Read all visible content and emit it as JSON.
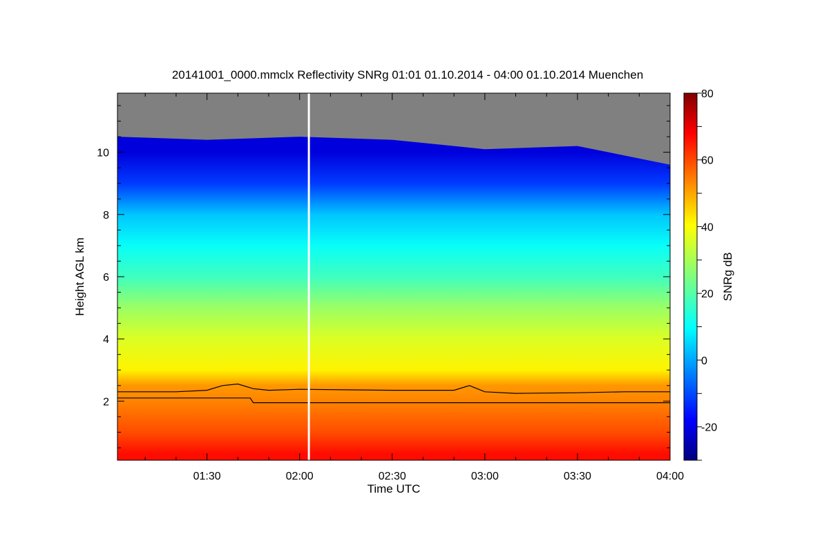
{
  "chart_data": {
    "type": "heatmap",
    "title": "20141001_0000.mmclx Reflectivity SNRg   01:01 01.10.2014 - 04:00 01.10.2014 Muenchen",
    "xlabel": "Time UTC",
    "ylabel": "Height AGL km",
    "colorbar_label": "SNRg dB",
    "x_range": [
      "01:01",
      "04:00"
    ],
    "y_range": [
      0.1,
      11.9
    ],
    "x_ticks": [
      "01:30",
      "02:00",
      "02:30",
      "03:00",
      "03:30",
      "04:00"
    ],
    "y_ticks": [
      2,
      4,
      6,
      8,
      10
    ],
    "colorbar_range": [
      -30,
      80
    ],
    "colorbar_ticks": [
      -20,
      0,
      20,
      40,
      60,
      80
    ],
    "colormap": "jet",
    "no_signal_color": "#808080",
    "marker_line": {
      "time": "02:03",
      "color": "#ffffff"
    },
    "profile": [
      {
        "height_km": 0.3,
        "snr_db": 65
      },
      {
        "height_km": 1.0,
        "snr_db": 58
      },
      {
        "height_km": 2.0,
        "snr_db": 52
      },
      {
        "height_km": 2.5,
        "snr_db": 50
      },
      {
        "height_km": 3.0,
        "snr_db": 40
      },
      {
        "height_km": 4.0,
        "snr_db": 35
      },
      {
        "height_km": 5.0,
        "snr_db": 28
      },
      {
        "height_km": 6.0,
        "snr_db": 18
      },
      {
        "height_km": 7.0,
        "snr_db": 12
      },
      {
        "height_km": 8.0,
        "snr_db": 5
      },
      {
        "height_km": 9.0,
        "snr_db": -10
      },
      {
        "height_km": 10.0,
        "snr_db": -20
      }
    ],
    "echo_top": {
      "times": [
        "01:01",
        "01:30",
        "02:00",
        "02:30",
        "03:00",
        "03:30",
        "04:00"
      ],
      "height_km": [
        10.5,
        10.4,
        10.5,
        10.4,
        10.1,
        10.2,
        9.6
      ]
    },
    "series": [
      {
        "times": [
          "01:01",
          "01:20",
          "01:30",
          "01:35",
          "01:40",
          "01:45",
          "01:50",
          "02:00",
          "02:30",
          "02:50",
          "02:55",
          "03:00",
          "03:10",
          "03:30",
          "03:45",
          "04:00"
        ],
        "height_km": [
          2.3,
          2.3,
          2.35,
          2.5,
          2.55,
          2.4,
          2.35,
          2.38,
          2.35,
          2.35,
          2.5,
          2.3,
          2.25,
          2.27,
          2.3,
          2.3
        ]
      },
      {
        "times": [
          "01:01",
          "01:44",
          "01:45",
          "04:00"
        ],
        "height_km": [
          2.1,
          2.1,
          1.95,
          1.95
        ]
      }
    ]
  }
}
